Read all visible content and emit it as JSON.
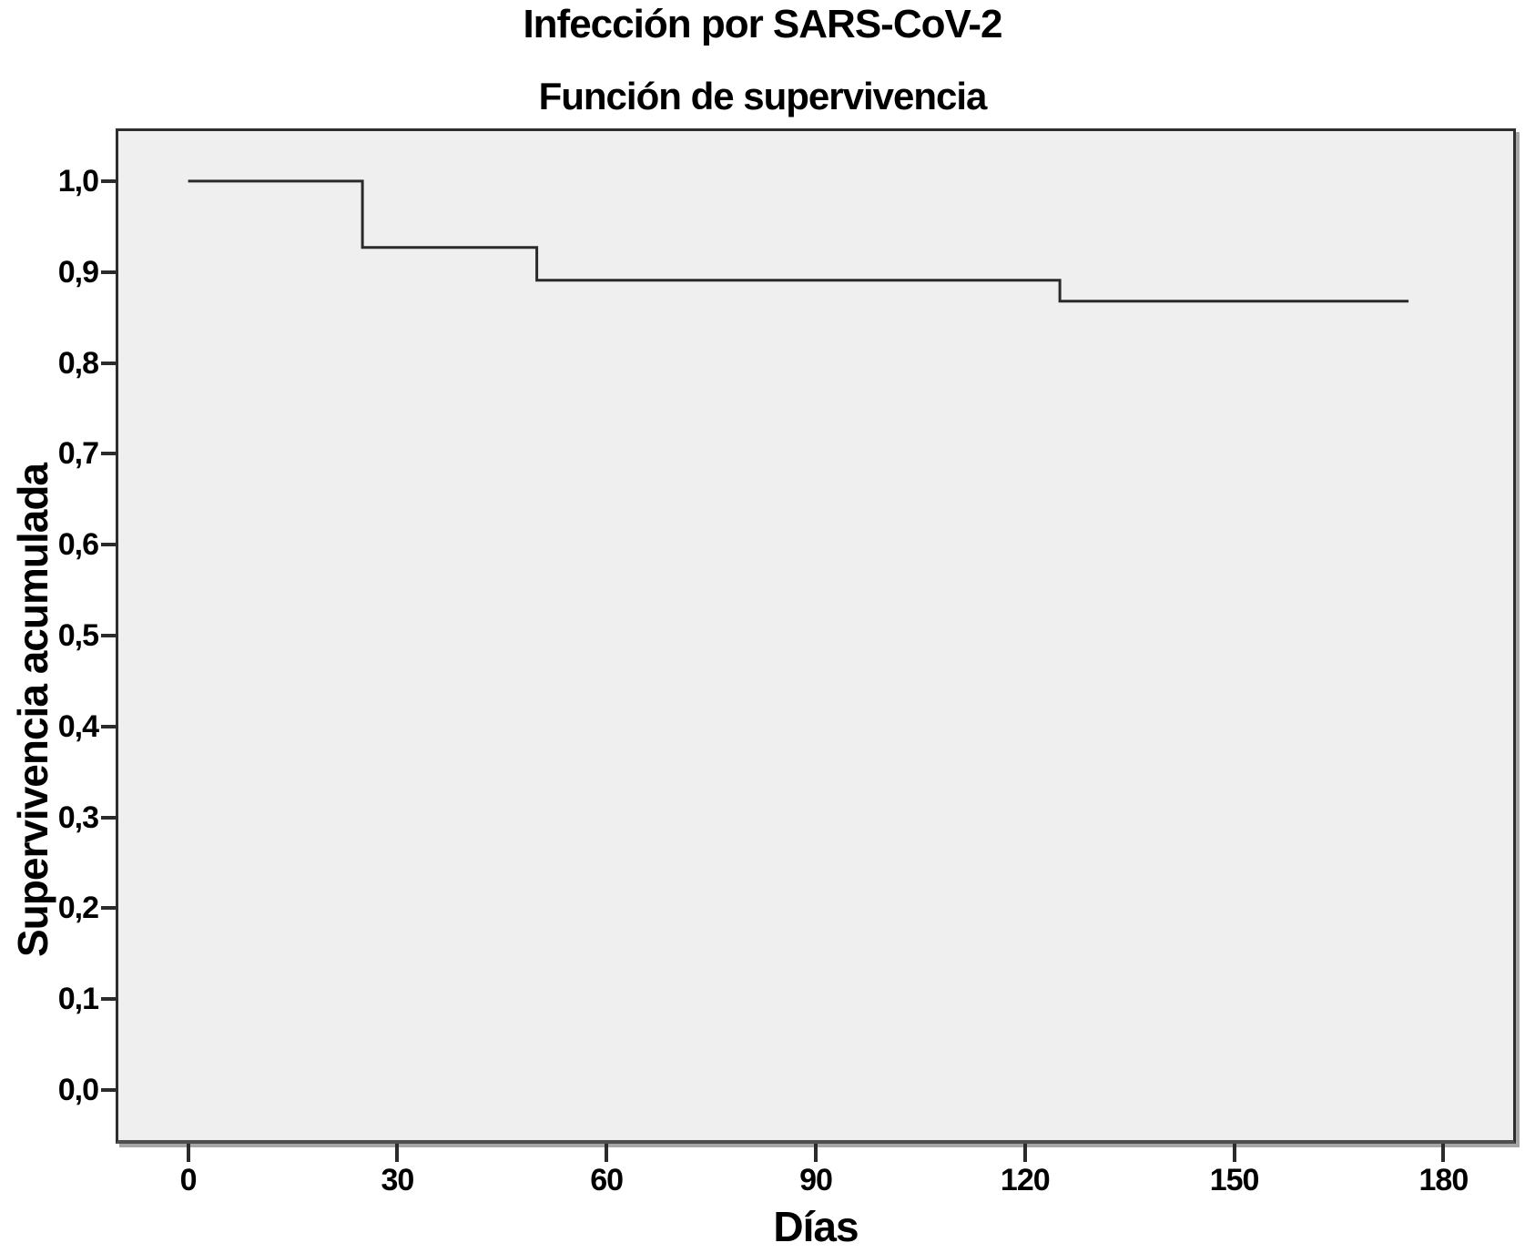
{
  "page": {
    "background": "#ffffff"
  },
  "chart_data": {
    "type": "line",
    "subtype": "kaplan-meier-step",
    "title": "Infección por SARS-CoV-2",
    "subtitle": "Función de supervivencia",
    "xlabel": "Días",
    "ylabel": "Supervivencia acumulada",
    "xlim": [
      -10,
      190
    ],
    "ylim": [
      -0.055,
      1.055
    ],
    "grid": false,
    "legend": "none",
    "plot_background": "#efefef",
    "decimal_separator": ",",
    "x_ticks": {
      "values": [
        0,
        30,
        60,
        90,
        120,
        150,
        180
      ],
      "labels": [
        "0",
        "30",
        "60",
        "90",
        "120",
        "150",
        "180"
      ]
    },
    "y_ticks": {
      "values": [
        1.0,
        0.9,
        0.8,
        0.7,
        0.6,
        0.5,
        0.4,
        0.3,
        0.2,
        0.1,
        0.0
      ],
      "labels": [
        "1,0",
        "0,9",
        "0,8",
        "0,7",
        "0,6",
        "0,5",
        "0,4",
        "0,3",
        "0,2",
        "0,1",
        "0,0"
      ]
    },
    "series": [
      {
        "name": "Función de supervivencia",
        "color": "#2a2a2a",
        "points": [
          [
            0,
            1.0
          ],
          [
            25,
            1.0
          ],
          [
            25,
            0.927
          ],
          [
            50,
            0.927
          ],
          [
            50,
            0.891
          ],
          [
            125,
            0.891
          ],
          [
            125,
            0.868
          ],
          [
            175,
            0.868
          ]
        ],
        "event_times_days": [
          25,
          50,
          125
        ],
        "followup_end_day": 175
      }
    ]
  },
  "colors": {
    "axis": "#2b2b2b",
    "text": "#000000",
    "frame_border": "#2e2e2e",
    "frame_shadow": "#a6a6a6"
  }
}
